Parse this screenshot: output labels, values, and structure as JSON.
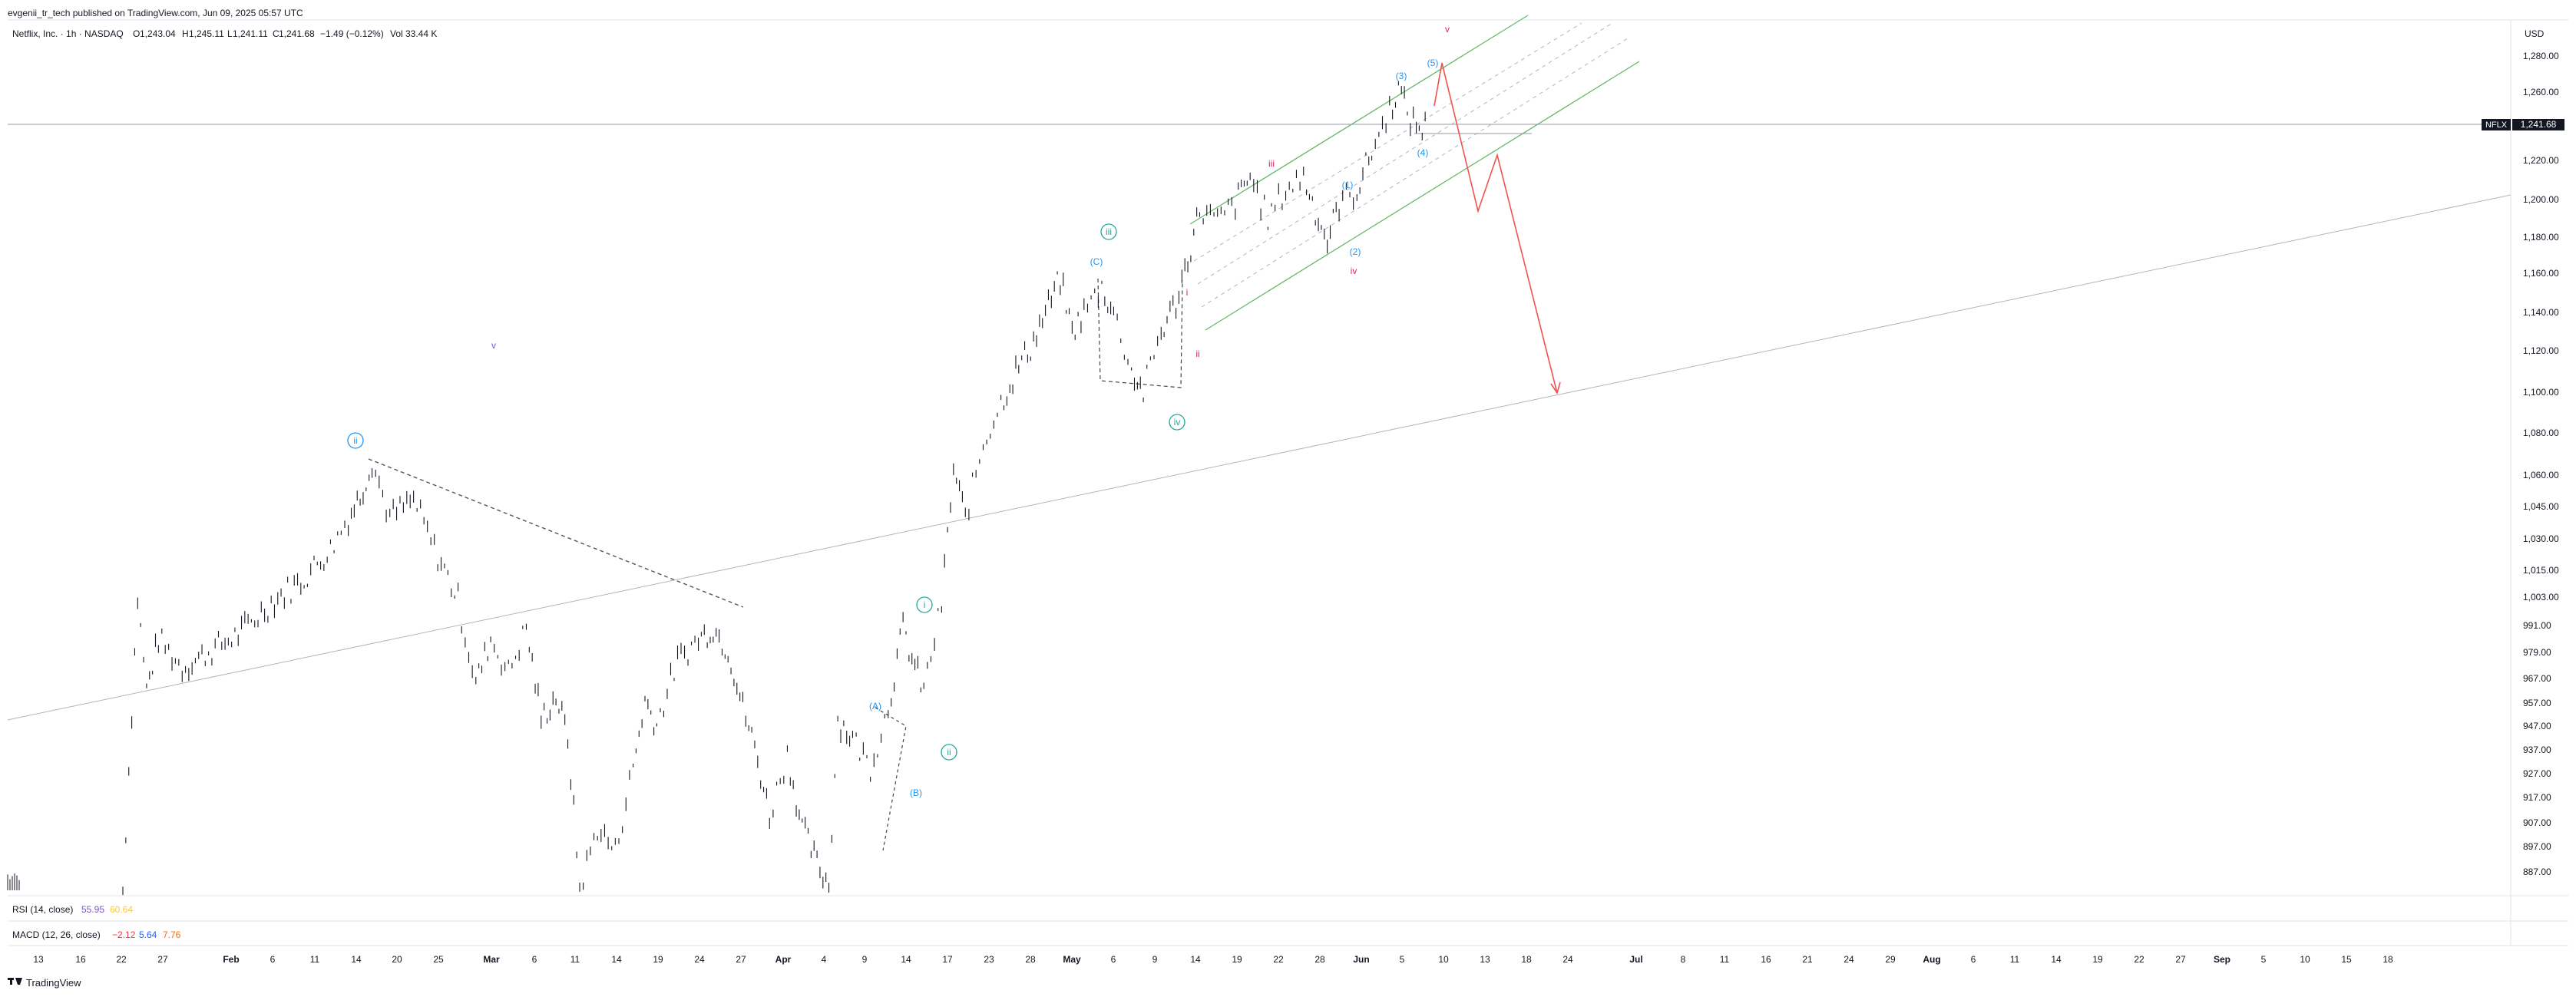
{
  "header": {
    "publisher": "evgenii_tr_tech published on TradingView.com, Jun 09, 2025 05:57 UTC"
  },
  "legend": {
    "symbol": "Netflix, Inc. · 1h · NASDAQ",
    "open_label": "O",
    "open": "1,243.04",
    "high_label": "H",
    "high": "1,245.11",
    "low_label": "L",
    "low": "1,241.11",
    "close_label": "C",
    "close": "1,241.68",
    "change": "−1.49 (−0.12%)",
    "vol_label": "Vol",
    "vol": "33.44 K"
  },
  "price_axis": {
    "currency": "USD",
    "ticks": [
      "1,280.00",
      "1,260.00",
      "1,220.00",
      "1,200.00",
      "1,180.00",
      "1,160.00",
      "1,140.00",
      "1,120.00",
      "1,100.00",
      "1,080.00",
      "1,060.00",
      "1,045.00",
      "1,030.00",
      "1,015.00",
      "1,003.00",
      "991.00",
      "979.00",
      "967.00",
      "957.00",
      "947.00",
      "937.00",
      "927.00",
      "917.00",
      "907.00",
      "897.00",
      "887.00"
    ]
  },
  "last_price": {
    "ticker": "NFLX",
    "value": "1,241.68"
  },
  "time_axis": {
    "ticks": [
      "13",
      "16",
      "22",
      "27",
      "Feb",
      "6",
      "11",
      "14",
      "20",
      "25",
      "Mar",
      "6",
      "11",
      "14",
      "19",
      "24",
      "27",
      "Apr",
      "4",
      "9",
      "14",
      "17",
      "23",
      "28",
      "May",
      "6",
      "9",
      "14",
      "19",
      "22",
      "28",
      "Jun",
      "5",
      "10",
      "13",
      "18",
      "24",
      "Jul",
      "8",
      "11",
      "16",
      "21",
      "24",
      "29",
      "Aug",
      "6",
      "11",
      "14",
      "19",
      "22",
      "27",
      "Sep",
      "5",
      "10",
      "15",
      "18"
    ]
  },
  "indicators": {
    "rsi": {
      "label": "RSI (14, close)",
      "v1": "55.95",
      "v2": "60.64",
      "c1": "#7e57c2",
      "c2": "#f7c948"
    },
    "macd": {
      "label": "MACD (12, 26, close)",
      "v1": "−2.12",
      "v2": "5.64",
      "v3": "7.76",
      "c1": "#f23645",
      "c2": "#2962ff",
      "c3": "#ff6d00"
    }
  },
  "footer": {
    "brand": "TradingView"
  },
  "wave_labels": [
    {
      "text": "v",
      "color": "#6a5acd"
    },
    {
      "text": "ii",
      "color": "#2196f3",
      "circle": true
    },
    {
      "text": "i",
      "color": "#26a69a",
      "circle": true
    },
    {
      "text": "ii",
      "color": "#26a69a",
      "circle": true
    },
    {
      "text": "iii",
      "color": "#26a69a",
      "circle": true
    },
    {
      "text": "iv",
      "color": "#26a69a",
      "circle": true
    },
    {
      "text": "(A)",
      "color": "#2196f3"
    },
    {
      "text": "(B)",
      "color": "#2196f3"
    },
    {
      "text": "(C)",
      "color": "#2196f3"
    },
    {
      "text": "i",
      "color": "#e91e63"
    },
    {
      "text": "ii",
      "color": "#e91e63"
    },
    {
      "text": "iii",
      "color": "#e91e63"
    },
    {
      "text": "iv",
      "color": "#e91e63"
    },
    {
      "text": "v",
      "color": "#e91e63"
    },
    {
      "text": "(1)",
      "color": "#2196f3"
    },
    {
      "text": "(2)",
      "color": "#2196f3"
    },
    {
      "text": "(3)",
      "color": "#2196f3"
    },
    {
      "text": "(4)",
      "color": "#2196f3"
    },
    {
      "text": "(5)",
      "color": "#2196f3"
    }
  ],
  "chart_data": {
    "type": "line",
    "title": "Netflix, Inc. · 1h · NASDAQ",
    "xlabel": "",
    "ylabel": "USD",
    "series": [
      {
        "values": [
          [
            0.0,
            879
          ],
          [
            0.5,
            1003
          ],
          [
            0.8,
            962
          ],
          [
            1.2,
            985
          ],
          [
            2,
            972
          ],
          [
            3,
            980
          ],
          [
            4,
            988
          ],
          [
            5,
            1001
          ],
          [
            6,
            1010
          ],
          [
            7,
            1025
          ],
          [
            7.6,
            1040
          ],
          [
            8,
            1050
          ],
          [
            8.4,
            1067
          ],
          [
            9,
            1040
          ],
          [
            9.8,
            1048
          ],
          [
            10.5,
            1025
          ],
          [
            11.3,
            1002
          ],
          [
            11.9,
            965
          ],
          [
            12.4,
            985
          ],
          [
            13,
            970
          ],
          [
            13.6,
            990
          ],
          [
            14.1,
            950
          ],
          [
            14.6,
            960
          ],
          [
            15.0,
            942
          ],
          [
            15.4,
            880
          ],
          [
            16,
            905
          ],
          [
            16.6,
            895
          ],
          [
            17.2,
            930
          ],
          [
            17.6,
            958
          ],
          [
            18.0,
            948
          ],
          [
            18.7,
            975
          ],
          [
            19.4,
            985
          ],
          [
            19.9,
            990
          ],
          [
            20.4,
            980
          ],
          [
            20.9,
            955
          ],
          [
            21.3,
            938
          ],
          [
            21.8,
            910
          ],
          [
            22.4,
            935
          ],
          [
            22.9,
            905
          ],
          [
            23.4,
            890
          ],
          [
            23.8,
            882
          ],
          [
            24.1,
            950
          ],
          [
            24.6,
            942
          ],
          [
            25.2,
            930
          ],
          [
            25.8,
            955
          ],
          [
            26.3,
            990
          ],
          [
            26.6,
            976
          ],
          [
            27.0,
            962
          ],
          [
            27.6,
            1000
          ],
          [
            28.0,
            1062
          ],
          [
            28.4,
            1040
          ],
          [
            29.0,
            1075
          ],
          [
            29.6,
            1095
          ],
          [
            30.1,
            1110
          ],
          [
            30.6,
            1122
          ],
          [
            31.1,
            1140
          ],
          [
            31.6,
            1157
          ],
          [
            32.0,
            1130
          ],
          [
            32.4,
            1140
          ],
          [
            33.0,
            1153
          ],
          [
            33.4,
            1140
          ],
          [
            34.0,
            1110
          ],
          [
            34.4,
            1100
          ],
          [
            35.0,
            1130
          ],
          [
            35.5,
            1145
          ],
          [
            35.9,
            1168
          ],
          [
            36.3,
            1195
          ],
          [
            36.9,
            1188
          ],
          [
            37.5,
            1198
          ],
          [
            38.0,
            1212
          ],
          [
            38.6,
            1190
          ],
          [
            39.2,
            1205
          ],
          [
            39.8,
            1212
          ],
          [
            40.3,
            1190
          ],
          [
            40.6,
            1178
          ],
          [
            41.0,
            1198
          ],
          [
            41.6,
            1205
          ],
          [
            42.1,
            1225
          ],
          [
            42.7,
            1250
          ],
          [
            43.0,
            1262
          ],
          [
            43.4,
            1244
          ],
          [
            43.8,
            1238
          ],
          [
            44.0,
            1242
          ]
        ]
      }
    ],
    "ylim": [
      880,
      1290
    ]
  }
}
